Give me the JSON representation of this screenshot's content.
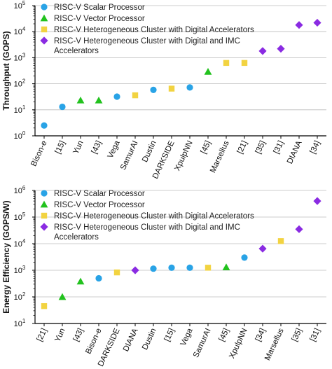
{
  "colors": {
    "scalar": "#29a3e6",
    "vector": "#22c21e",
    "digital": "#f2d341",
    "imc": "#8a2be2",
    "grid": "#bcbcbc",
    "axis": "#000000"
  },
  "chart_data": [
    {
      "type": "scatter",
      "id": "throughput",
      "ylabel": "Throughput (GOPS)",
      "yscale": "log",
      "ylim": [
        1,
        100000
      ],
      "ytick_exponents": [
        0,
        1,
        2,
        3,
        4,
        5
      ],
      "grid": true,
      "legend_placement": "top-left",
      "legend": [
        {
          "label": "RISC-V Scalar Processor",
          "series": "scalar",
          "marker": "circle"
        },
        {
          "label": "RISC-V Vector Processor",
          "series": "vector",
          "marker": "triangle"
        },
        {
          "label": "RISC-V Heterogeneous Cluster with Digital Accelerators",
          "series": "digital",
          "marker": "square"
        },
        {
          "label": "RISC-V Heterogeneous Cluster with Digital and IMC",
          "label2": "Accelerators",
          "series": "imc",
          "marker": "diamond"
        }
      ],
      "categories": [
        "Bison-e",
        "[15]",
        "Yun",
        "[43]",
        "Vega",
        "SamurAI",
        "Dustin",
        "DARKSIDE",
        "XpulpNN",
        "[45]",
        "Marsellus",
        "[21]",
        "[35]",
        "[31]",
        "DIANA",
        "[34]"
      ],
      "points": [
        {
          "x": "Bison-e",
          "y": 2.5,
          "series": "scalar"
        },
        {
          "x": "[15]",
          "y": 13,
          "series": "scalar"
        },
        {
          "x": "Yun",
          "y": 23,
          "series": "vector"
        },
        {
          "x": "[43]",
          "y": 23,
          "series": "vector"
        },
        {
          "x": "Vega",
          "y": 32,
          "series": "scalar"
        },
        {
          "x": "SamurAI",
          "y": 36,
          "series": "digital"
        },
        {
          "x": "Dustin",
          "y": 58,
          "series": "scalar"
        },
        {
          "x": "DARKSIDE",
          "y": 65,
          "series": "digital"
        },
        {
          "x": "XpulpNN",
          "y": 72,
          "series": "scalar"
        },
        {
          "x": "[45]",
          "y": 290,
          "series": "vector"
        },
        {
          "x": "Marsellus",
          "y": 630,
          "series": "digital"
        },
        {
          "x": "[21]",
          "y": 630,
          "series": "digital"
        },
        {
          "x": "[35]",
          "y": 1800,
          "series": "imc"
        },
        {
          "x": "[31]",
          "y": 2200,
          "series": "imc"
        },
        {
          "x": "DIANA",
          "y": 18000,
          "series": "imc"
        },
        {
          "x": "[34]",
          "y": 22000,
          "series": "imc"
        }
      ]
    },
    {
      "type": "scatter",
      "id": "energy",
      "ylabel": "Energy Efficiency (GOPS/W)",
      "yscale": "log",
      "ylim": [
        10,
        1000000
      ],
      "ytick_exponents": [
        1,
        2,
        3,
        4,
        5,
        6
      ],
      "grid": true,
      "legend_placement": "top-left",
      "legend": [
        {
          "label": "RISC-V Scalar Processor",
          "series": "scalar",
          "marker": "circle"
        },
        {
          "label": "RISC-V Vector Processor",
          "series": "vector",
          "marker": "triangle"
        },
        {
          "label": "RISC-V Heterogeneous Cluster with Digital Accelerators",
          "series": "digital",
          "marker": "square"
        },
        {
          "label": "RISC-V Heterogeneous Cluster with Digital and IMC",
          "label2": "Accelerators",
          "series": "imc",
          "marker": "diamond"
        }
      ],
      "categories": [
        "[21]",
        "Yun",
        "[43]",
        "Bison-e",
        "DARKSIDE",
        "DIANA",
        "Dustin",
        "[15]",
        "Vega",
        "SamurAI",
        "[45]",
        "XpulpNN",
        "[34]",
        "Marsellus",
        "[35]",
        "[31]"
      ],
      "points": [
        {
          "x": "[21]",
          "y": 45,
          "series": "digital"
        },
        {
          "x": "Yun",
          "y": 100,
          "series": "vector"
        },
        {
          "x": "[43]",
          "y": 380,
          "series": "vector"
        },
        {
          "x": "Bison-e",
          "y": 500,
          "series": "scalar"
        },
        {
          "x": "DARKSIDE",
          "y": 830,
          "series": "digital"
        },
        {
          "x": "DIANA",
          "y": 1000,
          "series": "imc"
        },
        {
          "x": "Dustin",
          "y": 1150,
          "series": "scalar"
        },
        {
          "x": "[15]",
          "y": 1250,
          "series": "scalar"
        },
        {
          "x": "Vega",
          "y": 1250,
          "series": "scalar"
        },
        {
          "x": "SamurAI",
          "y": 1250,
          "series": "digital"
        },
        {
          "x": "[45]",
          "y": 1300,
          "series": "vector"
        },
        {
          "x": "XpulpNN",
          "y": 3000,
          "series": "scalar"
        },
        {
          "x": "[34]",
          "y": 6500,
          "series": "imc"
        },
        {
          "x": "Marsellus",
          "y": 12500,
          "series": "digital"
        },
        {
          "x": "[35]",
          "y": 35000,
          "series": "imc"
        },
        {
          "x": "[31]",
          "y": 400000,
          "series": "imc"
        }
      ]
    }
  ]
}
